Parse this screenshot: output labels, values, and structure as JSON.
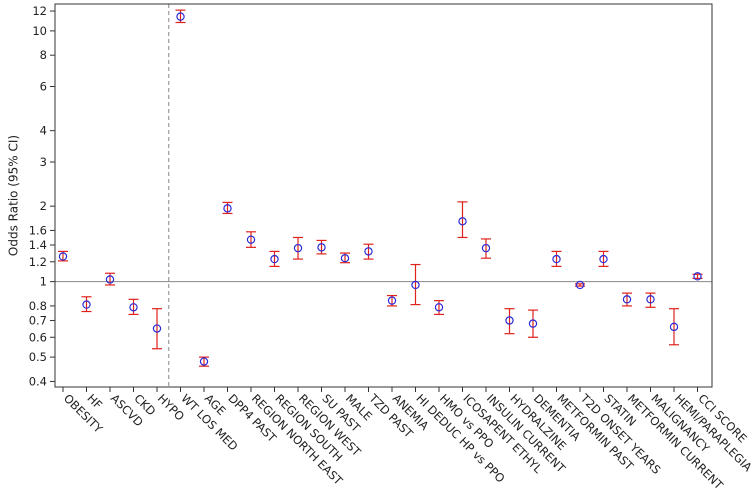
{
  "chart_data": {
    "type": "scatter",
    "subtype": "forest-plot-odds-ratio",
    "ylabel": "Odds Ratio (95% CI)",
    "xlabel": "",
    "yscale": "log",
    "ylim": [
      0.38,
      12.8
    ],
    "yticks": [
      0.4,
      0.5,
      0.6,
      0.7,
      0.8,
      1,
      1.2,
      1.4,
      1.6,
      2,
      3,
      4,
      6,
      8,
      10,
      12
    ],
    "ytick_labels": [
      "0.4",
      "0.5",
      "0.6",
      "0.7",
      "0.8",
      "1",
      "1.2",
      "1.4",
      "1.6",
      "2",
      "3",
      "4",
      "6",
      "8",
      "10",
      "12"
    ],
    "reference_line": 1,
    "separator_after_category": "HYPO",
    "points": [
      {
        "label": "OBESITY",
        "or": 1.26,
        "lo": 1.21,
        "hi": 1.32
      },
      {
        "label": "HF",
        "or": 0.81,
        "lo": 0.76,
        "hi": 0.87
      },
      {
        "label": "ASCVD",
        "or": 1.02,
        "lo": 0.97,
        "hi": 1.08
      },
      {
        "label": "CKD",
        "or": 0.79,
        "lo": 0.74,
        "hi": 0.85
      },
      {
        "label": "HYPO",
        "or": 0.65,
        "lo": 0.54,
        "hi": 0.78
      },
      {
        "label": "WT LOS MED",
        "or": 11.4,
        "lo": 10.8,
        "hi": 12.1
      },
      {
        "label": "AGE",
        "or": 0.48,
        "lo": 0.46,
        "hi": 0.5
      },
      {
        "label": "DPP4 PAST",
        "or": 1.96,
        "lo": 1.87,
        "hi": 2.07
      },
      {
        "label": "REGION NORTH EAST",
        "or": 1.47,
        "lo": 1.37,
        "hi": 1.58
      },
      {
        "label": "REGION SOUTH",
        "or": 1.23,
        "lo": 1.15,
        "hi": 1.32
      },
      {
        "label": "REGION WEST",
        "or": 1.36,
        "lo": 1.23,
        "hi": 1.5
      },
      {
        "label": "SU PAST",
        "or": 1.37,
        "lo": 1.29,
        "hi": 1.46
      },
      {
        "label": "MALE",
        "or": 1.24,
        "lo": 1.19,
        "hi": 1.3
      },
      {
        "label": "TZD PAST",
        "or": 1.32,
        "lo": 1.23,
        "hi": 1.41
      },
      {
        "label": "ANEMIA",
        "or": 0.84,
        "lo": 0.8,
        "hi": 0.88
      },
      {
        "label": "HI DEDUC HP vs PPO",
        "or": 0.97,
        "lo": 0.81,
        "hi": 1.17
      },
      {
        "label": "HMO vs PPO",
        "or": 0.79,
        "lo": 0.74,
        "hi": 0.84
      },
      {
        "label": "ICOSAPENT ETHYL",
        "or": 1.74,
        "lo": 1.5,
        "hi": 2.08
      },
      {
        "label": "INSULIN CURRENT",
        "or": 1.36,
        "lo": 1.24,
        "hi": 1.48
      },
      {
        "label": "HYDRALZINE",
        "or": 0.7,
        "lo": 0.62,
        "hi": 0.78
      },
      {
        "label": "DEMENTIA",
        "or": 0.68,
        "lo": 0.6,
        "hi": 0.77
      },
      {
        "label": "METFORMIN PAST",
        "or": 1.23,
        "lo": 1.15,
        "hi": 1.32
      },
      {
        "label": "T2D ONSET YEARS",
        "or": 0.97,
        "lo": 0.96,
        "hi": 0.98
      },
      {
        "label": "STATIN",
        "or": 1.23,
        "lo": 1.15,
        "hi": 1.32
      },
      {
        "label": "METFORMIN CURRENT",
        "or": 0.85,
        "lo": 0.8,
        "hi": 0.9
      },
      {
        "label": "MALIGNANCY",
        "or": 0.85,
        "lo": 0.79,
        "hi": 0.9
      },
      {
        "label": "HEMI/PARAPLEGIA",
        "or": 0.66,
        "lo": 0.56,
        "hi": 0.78
      },
      {
        "label": "CCI SCORE",
        "or": 1.05,
        "lo": 1.03,
        "hi": 1.07
      }
    ],
    "colors": {
      "marker": "#2a2ad8",
      "error_bar": "#e0221c",
      "reference_line": "#888888",
      "separator_line": "#888888",
      "axis": "#333333"
    }
  }
}
